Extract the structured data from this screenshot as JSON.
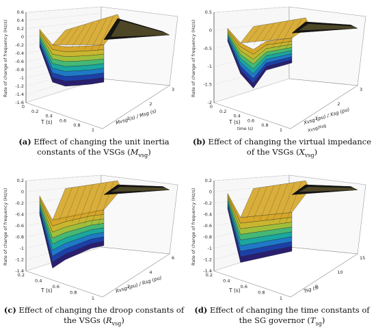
{
  "figure": {
    "panels": [
      {
        "id": "a",
        "caption_tag": "(a)",
        "caption_text": "Effect of changing the unit inertia constants of the VSGs (",
        "caption_symbol": "M",
        "caption_sub": "vsg",
        "caption_close": ")",
        "chart_data": {
          "type": "surface",
          "zlabel": "Rate of change of frequency (Hz/s)",
          "xlabel": "T (s)",
          "ylabel": "Mvsg (s) / Msg (s)",
          "zlim": [
            -1.6,
            0.6
          ],
          "z_ticks": [
            "0.6",
            "0.4",
            "0.2",
            "0",
            "-0.2",
            "-0.4",
            "-0.6",
            "-0.8",
            "-1",
            "-1.2",
            "-1.4",
            "-1.6"
          ],
          "x_ticks": [
            "0",
            "0.2",
            "0.4",
            "0.6",
            "0.8",
            "1"
          ],
          "y_ticks": [
            "1",
            "2",
            "3"
          ],
          "min_curve": [
            -0.25,
            -1.1,
            -1.2,
            -1.18,
            -1.15,
            -1.1
          ],
          "top_value": 0.55,
          "steady_value": 0.0
        }
      },
      {
        "id": "b",
        "caption_tag": "(b)",
        "caption_text": "Effect of changing the virtual impedance of the VSGs (",
        "caption_symbol": "X",
        "caption_sub": "vsg",
        "caption_close": ")",
        "chart_data": {
          "type": "surface",
          "zlabel": "Rate of change of frequency (Hz/s)",
          "xlabel": "T (s)",
          "xlabel2": "time (s)",
          "ylabel": "Xvsg (pu) / Xsg (pu)",
          "ylabel2": "Xvsg/Xsg",
          "zlim": [
            -2,
            0.5
          ],
          "z_ticks": [
            "0.5",
            "0",
            "-0.5",
            "-1",
            "-1.5",
            "-2"
          ],
          "x_ticks": [
            "0",
            "0.2",
            "0.4",
            "0.6",
            "0.8",
            "1"
          ],
          "y_ticks": [
            "1",
            "2",
            "3"
          ],
          "min_curve": [
            -0.3,
            -1.2,
            -1.6,
            -1.1,
            -1.0,
            -0.9
          ],
          "top_value": 0.35,
          "steady_value": 0.0
        }
      },
      {
        "id": "c",
        "caption_tag": "(c)",
        "caption_text": "Effect of changing the droop constants of the VSGs (",
        "caption_symbol": "R",
        "caption_sub": "vsg",
        "caption_close": ")",
        "chart_data": {
          "type": "surface",
          "zlabel": "Rate of change of frequency (Hz/s)",
          "xlabel": "T (s)",
          "ylabel": "Rvsg (pu) / Rsg (pu)",
          "zlim": [
            -1.4,
            0.2
          ],
          "z_ticks": [
            "0.2",
            "0",
            "-0.2",
            "-0.4",
            "-0.6",
            "-0.8",
            "-1",
            "-1.2",
            "-1.4"
          ],
          "x_ticks": [
            "0.2",
            "0.4",
            "0.6",
            "0.8",
            "1"
          ],
          "y_ticks": [
            "2",
            "4",
            "6"
          ],
          "min_curve": [
            -0.4,
            -1.35,
            -1.2,
            -1.1,
            -1.0,
            -0.95
          ],
          "top_value": 0.2,
          "steady_value": 0.0
        }
      },
      {
        "id": "d",
        "caption_tag": "(d)",
        "caption_text": "Effect of changing the time constants of the SG governor (",
        "caption_symbol": "T",
        "caption_sub": "sg",
        "caption_close": ")",
        "chart_data": {
          "type": "surface",
          "zlabel": "Rate of change of frequency (Hz/s)",
          "xlabel": "T (s)",
          "ylabel": "Tsg (s)",
          "zlim": [
            -1.4,
            0.2
          ],
          "z_ticks": [
            "0.2",
            "0",
            "-0.2",
            "-0.4",
            "-0.6",
            "-0.8",
            "-1",
            "-1.2",
            "-1.4"
          ],
          "x_ticks": [
            "0.2",
            "0.4",
            "0.6",
            "0.8",
            "1"
          ],
          "y_ticks": [
            "5",
            "10",
            "15"
          ],
          "min_curve": [
            -0.3,
            -1.25,
            -1.2,
            -1.15,
            -1.1,
            -1.05
          ],
          "top_value": 0.2,
          "steady_value": 0.0
        }
      }
    ],
    "colormap": [
      "#2a1f6e",
      "#1d3fa8",
      "#1f79c6",
      "#1aa7a0",
      "#45b875",
      "#9fbf3c",
      "#c9b52f",
      "#d6a72a"
    ]
  }
}
